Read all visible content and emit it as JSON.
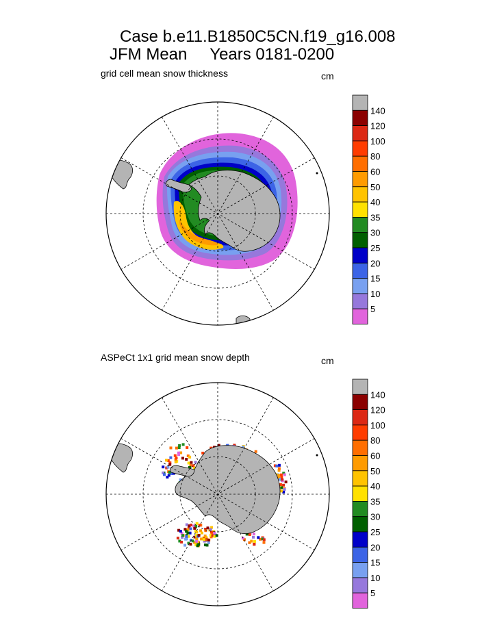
{
  "title": {
    "line1": "Case b.e11.B1850C5CN.f19_g16.008",
    "line2": "JFM Mean     Years 0181-0200"
  },
  "panels": [
    {
      "id": "model",
      "subtitle": "grid cell mean snow thickness",
      "unit": "cm"
    },
    {
      "id": "obs",
      "subtitle": "ASPeCt 1x1 grid mean snow depth",
      "unit": "cm"
    }
  ],
  "colorbar": {
    "labels": [
      "140",
      "120",
      "100",
      "80",
      "60",
      "50",
      "40",
      "35",
      "30",
      "25",
      "20",
      "15",
      "10",
      "5"
    ],
    "colors": [
      "#b4b4b4",
      "#8b0000",
      "#dc2814",
      "#ff3c00",
      "#ff6e00",
      "#ff9b00",
      "#ffc300",
      "#ffe100",
      "#228b22",
      "#005f00",
      "#0000c8",
      "#3c64e6",
      "#78a0f0",
      "#9678dc",
      "#e164dc"
    ],
    "colors_obs": [
      "#b4b4b4",
      "#8b0000",
      "#dc2814",
      "#ff3c00",
      "#ff6e00",
      "#ff9b00",
      "#ffc300",
      "#ffe100",
      "#228b22",
      "#005f00",
      "#0000c8",
      "#3c64e6",
      "#78a0f0",
      "#9678dc",
      "#e164dc"
    ]
  },
  "map": {
    "land_color": "#b4b4b4",
    "ocean_color": "#ffffff"
  }
}
